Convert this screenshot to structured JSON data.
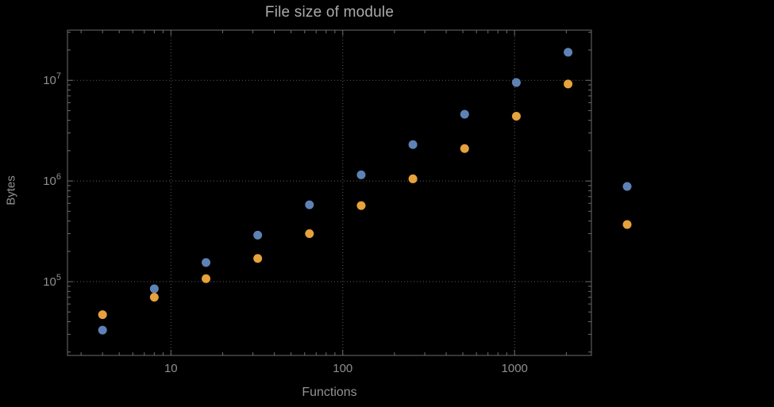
{
  "page": {
    "background": "#000000",
    "frame_color": "#6d6d6d",
    "grid_color": "#5c5c5c",
    "tick_label_color": "#8f8f8f"
  },
  "chart_data": {
    "type": "scatter",
    "title": "File size of module",
    "xlabel": "Functions",
    "ylabel": "Bytes",
    "x_scale": "log",
    "y_scale": "log",
    "xlim": [
      2.5,
      2800
    ],
    "ylim": [
      18500,
      31500000
    ],
    "x_major_ticks": [
      10,
      100,
      1000
    ],
    "x_major_tick_labels": [
      "10",
      "100",
      "1000"
    ],
    "y_major_ticks": [
      100000,
      1000000,
      10000000
    ],
    "y_major_tick_exponents": [
      5,
      6,
      7
    ],
    "grid": true,
    "grid_style": "dotted",
    "legend": {
      "position": "right-of-frame",
      "labels_visible": false,
      "marker_colors": [
        "#5e82b5",
        "#e6a23c"
      ]
    },
    "series": [
      {
        "name": "series-blue",
        "color": "#5e82b5",
        "x": [
          4,
          8,
          16,
          32,
          64,
          128,
          256,
          512,
          1024,
          2048
        ],
        "y": [
          33000,
          85000,
          155000,
          290000,
          580000,
          1150000,
          2300000,
          4600000,
          9500000,
          19000000
        ]
      },
      {
        "name": "series-orange",
        "color": "#e6a23c",
        "x": [
          4,
          8,
          16,
          32,
          64,
          128,
          256,
          512,
          1024,
          2048
        ],
        "y": [
          47000,
          70000,
          107000,
          170000,
          300000,
          570000,
          1050000,
          2100000,
          4400000,
          9200000
        ]
      }
    ]
  }
}
